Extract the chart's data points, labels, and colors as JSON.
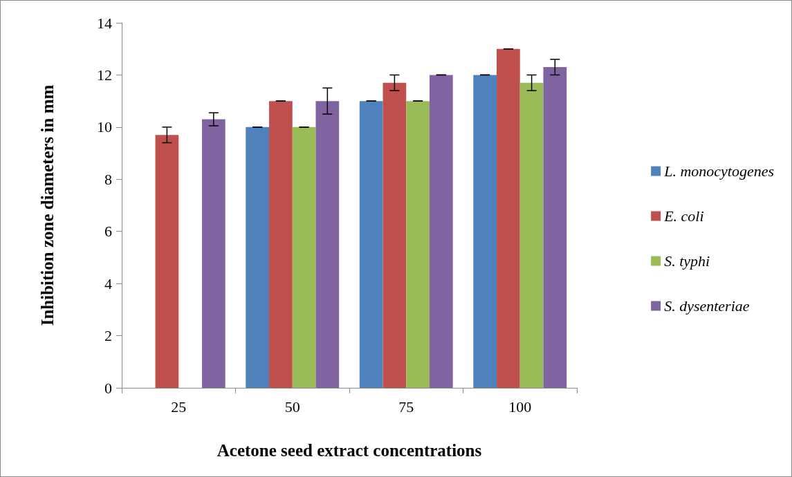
{
  "chart_data": {
    "type": "bar",
    "xlabel": "Acetone seed extract concentrations",
    "ylabel": "Inhibition zone diameters in mm",
    "categories": [
      "25",
      "50",
      "75",
      "100"
    ],
    "series": [
      {
        "name": "L. monocytogenes",
        "color": "#4f81bd",
        "values": [
          null,
          10,
          11,
          12
        ],
        "errors": [
          null,
          0,
          0,
          0
        ]
      },
      {
        "name": "E. coli",
        "color": "#c0504d",
        "values": [
          9.7,
          11,
          11.7,
          13
        ],
        "errors": [
          0.3,
          0,
          0.3,
          0
        ]
      },
      {
        "name": "S. typhi",
        "color": "#9bbb59",
        "values": [
          null,
          10,
          11,
          11.7
        ],
        "errors": [
          null,
          0,
          0,
          0.3
        ]
      },
      {
        "name": "S. dysenteriae",
        "color": "#8064a2",
        "values": [
          10.3,
          11,
          12,
          12.3
        ],
        "errors": [
          0.25,
          0.5,
          0,
          0.3
        ]
      }
    ],
    "ylim": [
      0,
      14
    ],
    "yticks": [
      0,
      2,
      4,
      6,
      8,
      10,
      12,
      14
    ],
    "grid": false,
    "legend": "right"
  }
}
